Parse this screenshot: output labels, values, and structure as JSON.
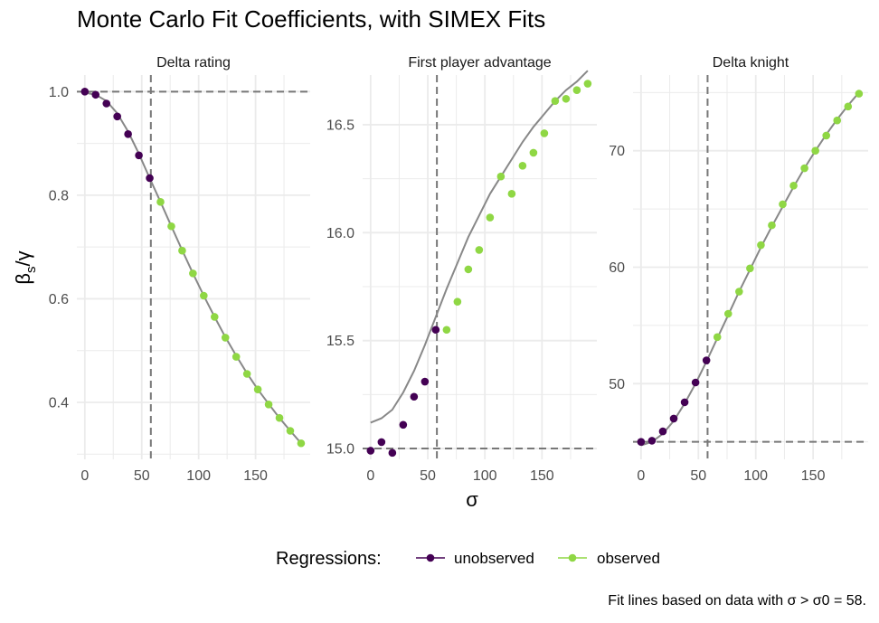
{
  "chart_data": {
    "type": "scatter",
    "title": "Monte Carlo Fit Coefficients, with SIMEX Fits",
    "xlabel": "σ",
    "ylabel": "βs/γ",
    "caption": "Fit lines based on data with σ > σ0 = 58.",
    "legend": {
      "title": "Regressions:",
      "position": "bottom",
      "entries": [
        {
          "label": "unobserved",
          "color": "#440154"
        },
        {
          "label": "observed",
          "color": "#8fd744"
        }
      ]
    },
    "colors": {
      "unobserved": "#440154",
      "observed": "#8fd744",
      "fit": "#888888",
      "reference": "#777777",
      "grid": "#ebebeb"
    },
    "grid": true,
    "x": [
      0,
      9.5,
      19,
      28.5,
      38,
      47.5,
      57,
      66.5,
      76,
      85.5,
      95,
      104.5,
      114,
      123.5,
      133,
      142.5,
      152,
      161.5,
      171,
      180.5,
      190
    ],
    "x_ticks": [
      0,
      50,
      100,
      150
    ],
    "xlim": [
      -7,
      198
    ],
    "sigma0": 58,
    "panels": [
      {
        "label": "Delta rating",
        "ylim": [
          0.29,
          1.032
        ],
        "y_ticks": [
          0.4,
          0.6,
          0.8,
          1.0
        ],
        "y_tick_labels": [
          "0.4",
          "0.6",
          "0.8",
          "1.0"
        ],
        "hline": 1.0,
        "unobserved": [
          1.0,
          0.994,
          0.977,
          0.952,
          0.918,
          0.877,
          0.833
        ],
        "observed": [
          0.787,
          0.74,
          0.693,
          0.649,
          0.606,
          0.565,
          0.525,
          0.488,
          0.455,
          0.425,
          0.396,
          0.37,
          0.345,
          0.321
        ],
        "fit": [
          0.998,
          0.994,
          0.982,
          0.958,
          0.923,
          0.88,
          0.833,
          0.787,
          0.74,
          0.694,
          0.649,
          0.606,
          0.565,
          0.526,
          0.49,
          0.456,
          0.425,
          0.397,
          0.37,
          0.345,
          0.321
        ]
      },
      {
        "label": "First player advantage",
        "ylim": [
          14.95,
          16.73
        ],
        "y_ticks": [
          15.0,
          15.5,
          16.0,
          16.5
        ],
        "y_tick_labels": [
          "15.0",
          "15.5",
          "16.0",
          "16.5"
        ],
        "hline": 15.0,
        "unobserved": [
          14.99,
          15.03,
          14.98,
          15.11,
          15.24,
          15.31,
          15.55
        ],
        "observed": [
          15.55,
          15.68,
          15.83,
          15.92,
          16.07,
          16.26,
          16.18,
          16.31,
          16.37,
          16.46,
          16.61,
          16.62,
          16.66,
          16.69
        ],
        "fit": [
          15.12,
          15.14,
          15.18,
          15.26,
          15.36,
          15.48,
          15.61,
          15.74,
          15.86,
          15.98,
          16.08,
          16.18,
          16.26,
          16.34,
          16.42,
          16.49,
          16.55,
          16.61,
          16.66,
          16.7,
          16.75
        ]
      },
      {
        "label": "Delta knight",
        "ylim": [
          43.5,
          76.5
        ],
        "y_ticks": [
          50,
          60,
          70
        ],
        "y_tick_labels": [
          "50",
          "60",
          "70"
        ],
        "hline": 45,
        "unobserved": [
          45.0,
          45.1,
          45.9,
          47.0,
          48.4,
          50.1,
          52.0
        ],
        "observed": [
          54.0,
          56.0,
          57.9,
          59.9,
          61.9,
          63.6,
          65.4,
          67.0,
          68.5,
          70.0,
          71.3,
          72.6,
          73.8,
          74.9
        ],
        "fit": [
          44.7,
          45.0,
          45.7,
          46.8,
          48.3,
          50.0,
          51.9,
          53.9,
          55.9,
          57.9,
          59.8,
          61.7,
          63.5,
          65.2,
          66.9,
          68.5,
          70.0,
          71.4,
          72.7,
          73.9,
          75.0
        ]
      }
    ]
  }
}
